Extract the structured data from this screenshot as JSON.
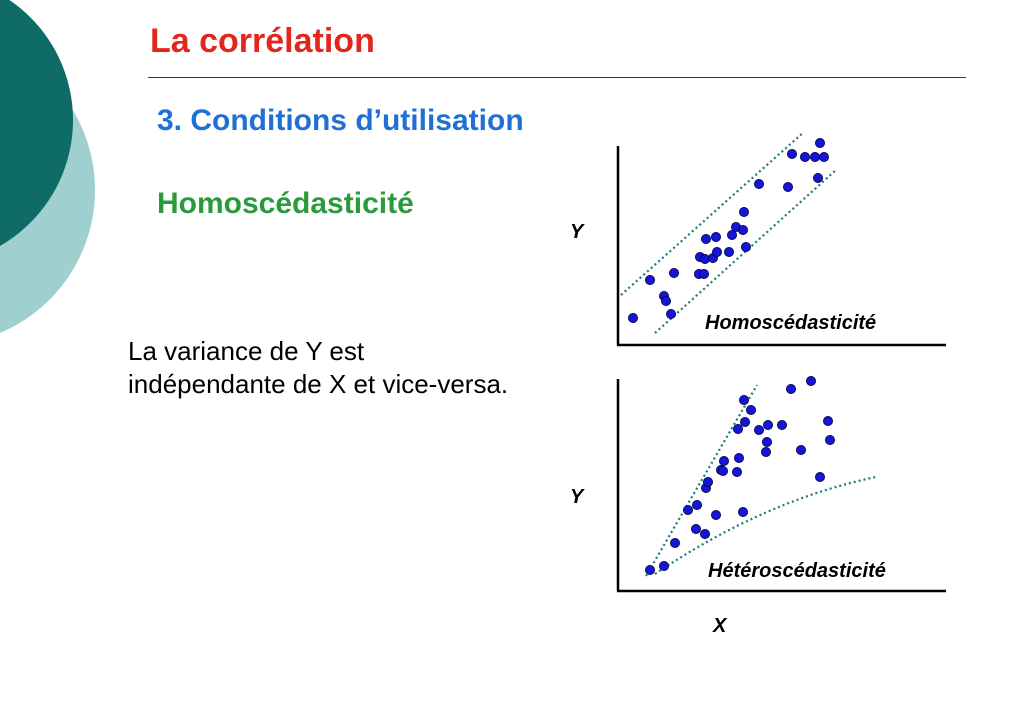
{
  "slide": {
    "title": "La corrélation",
    "subtitle": "3. Conditions d’utilisation",
    "section": "Homoscédasticité",
    "body": "La variance de Y est indépendante de X et vice-versa."
  },
  "colors": {
    "title": "#e3261c",
    "subtitle": "#1f6fd6",
    "section": "#2a9b3c",
    "deco_dark": "#0e6b66",
    "deco_light": "#9fd0cf",
    "point": "#1515d6",
    "band": "#1b7a78"
  },
  "chart_data": [
    {
      "type": "scatter",
      "title": "Homoscédasticité",
      "ylabel": "Y",
      "xlabel": "",
      "x": [
        15,
        32,
        46,
        48,
        53,
        56,
        81,
        82,
        86,
        87,
        88,
        95,
        98,
        99,
        111,
        114,
        118,
        125,
        126,
        128,
        141,
        170,
        174,
        187,
        197,
        200,
        202,
        206
      ],
      "y": [
        27,
        65,
        49,
        44,
        31,
        72,
        71,
        88,
        71,
        86,
        106,
        87,
        108,
        93,
        93,
        110,
        118,
        115,
        133,
        98,
        161,
        158,
        191,
        188,
        188,
        167,
        202,
        188
      ]
    },
    {
      "type": "scatter",
      "title": "Hétéroscédasticité",
      "ylabel": "Y",
      "xlabel": "X",
      "x": [
        32,
        46,
        57,
        70,
        78,
        79,
        87,
        88,
        90,
        98,
        103,
        105,
        106,
        119,
        120,
        121,
        125,
        126,
        127,
        133,
        141,
        148,
        149,
        150,
        164,
        173,
        183,
        193,
        202,
        210,
        212
      ],
      "y": [
        21,
        25,
        48,
        81,
        62,
        86,
        57,
        103,
        109,
        76,
        121,
        120,
        130,
        119,
        162,
        133,
        79,
        191,
        169,
        181,
        161,
        139,
        149,
        166,
        166,
        202,
        141,
        210,
        114,
        170,
        151
      ]
    }
  ]
}
